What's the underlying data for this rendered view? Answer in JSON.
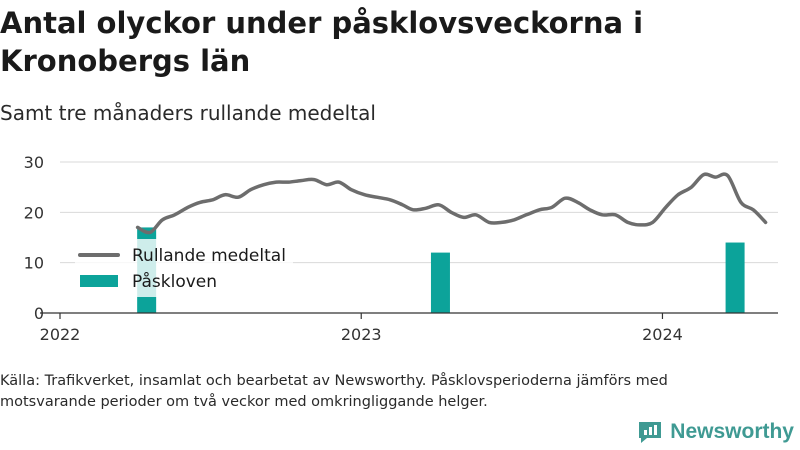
{
  "title": "Antal olyckor under påsklovsveckorna i Kronobergs län",
  "subtitle": "Samt tre månaders rullande medeltal",
  "source": "Källa: Trafikverket, insamlat och bearbetat av Newsworthy. Påsklovsperioderna jämförs med motsvarande perioder om två veckor med omkringliggande helger.",
  "brand": {
    "name": "Newsworthy",
    "icon": "newsworthy-logo-icon"
  },
  "colors": {
    "line": "#6d6d6d",
    "bar": "#0ca39a",
    "grid": "#d9d9d9",
    "axis": "#333333"
  },
  "chart_data": {
    "type": "bar+line",
    "title": "Antal olyckor under påsklovsveckorna i Kronobergs län",
    "subtitle": "Samt tre månaders rullande medeltal",
    "xlabel": "",
    "ylabel": "",
    "x_ticks": [
      "2022",
      "2023",
      "2024"
    ],
    "y_ticks": [
      0,
      10,
      20,
      30
    ],
    "ylim": [
      0,
      30
    ],
    "xlim": [
      "2022-01-01",
      "2024-05-20"
    ],
    "grid": true,
    "legend_position": "left",
    "series": [
      {
        "name": "Rullande medeltal",
        "type": "line",
        "points": [
          [
            "2022-04-05",
            17
          ],
          [
            "2022-04-20",
            16
          ],
          [
            "2022-05-05",
            18.5
          ],
          [
            "2022-05-20",
            19.5
          ],
          [
            "2022-06-05",
            21
          ],
          [
            "2022-06-20",
            22
          ],
          [
            "2022-07-05",
            22.5
          ],
          [
            "2022-07-20",
            23.5
          ],
          [
            "2022-08-05",
            23
          ],
          [
            "2022-08-20",
            24.5
          ],
          [
            "2022-09-05",
            25.5
          ],
          [
            "2022-09-20",
            26
          ],
          [
            "2022-10-05",
            26
          ],
          [
            "2022-10-20",
            26.3
          ],
          [
            "2022-11-05",
            26.5
          ],
          [
            "2022-11-20",
            25.5
          ],
          [
            "2022-12-05",
            26
          ],
          [
            "2022-12-20",
            24.5
          ],
          [
            "2023-01-05",
            23.5
          ],
          [
            "2023-01-20",
            23
          ],
          [
            "2023-02-05",
            22.5
          ],
          [
            "2023-02-20",
            21.5
          ],
          [
            "2023-03-05",
            20.5
          ],
          [
            "2023-03-20",
            20.8
          ],
          [
            "2023-04-05",
            21.5
          ],
          [
            "2023-04-20",
            20
          ],
          [
            "2023-05-05",
            19
          ],
          [
            "2023-05-20",
            19.5
          ],
          [
            "2023-06-05",
            18
          ],
          [
            "2023-06-20",
            18
          ],
          [
            "2023-07-05",
            18.5
          ],
          [
            "2023-07-20",
            19.5
          ],
          [
            "2023-08-05",
            20.5
          ],
          [
            "2023-08-20",
            21
          ],
          [
            "2023-09-05",
            22.8
          ],
          [
            "2023-09-20",
            22
          ],
          [
            "2023-10-05",
            20.5
          ],
          [
            "2023-10-20",
            19.5
          ],
          [
            "2023-11-05",
            19.5
          ],
          [
            "2023-11-20",
            18
          ],
          [
            "2023-12-05",
            17.5
          ],
          [
            "2023-12-20",
            18
          ],
          [
            "2024-01-05",
            21
          ],
          [
            "2024-01-20",
            23.5
          ],
          [
            "2024-02-05",
            25
          ],
          [
            "2024-02-20",
            27.5
          ],
          [
            "2024-03-05",
            27
          ],
          [
            "2024-03-20",
            27.3
          ],
          [
            "2024-04-05",
            22
          ],
          [
            "2024-04-20",
            20.5
          ],
          [
            "2024-05-05",
            18
          ]
        ]
      },
      {
        "name": "Påskloven",
        "type": "bar",
        "points": [
          [
            "2022-04-16",
            17
          ],
          [
            "2023-04-07",
            12
          ],
          [
            "2024-03-29",
            14
          ]
        ]
      }
    ]
  }
}
